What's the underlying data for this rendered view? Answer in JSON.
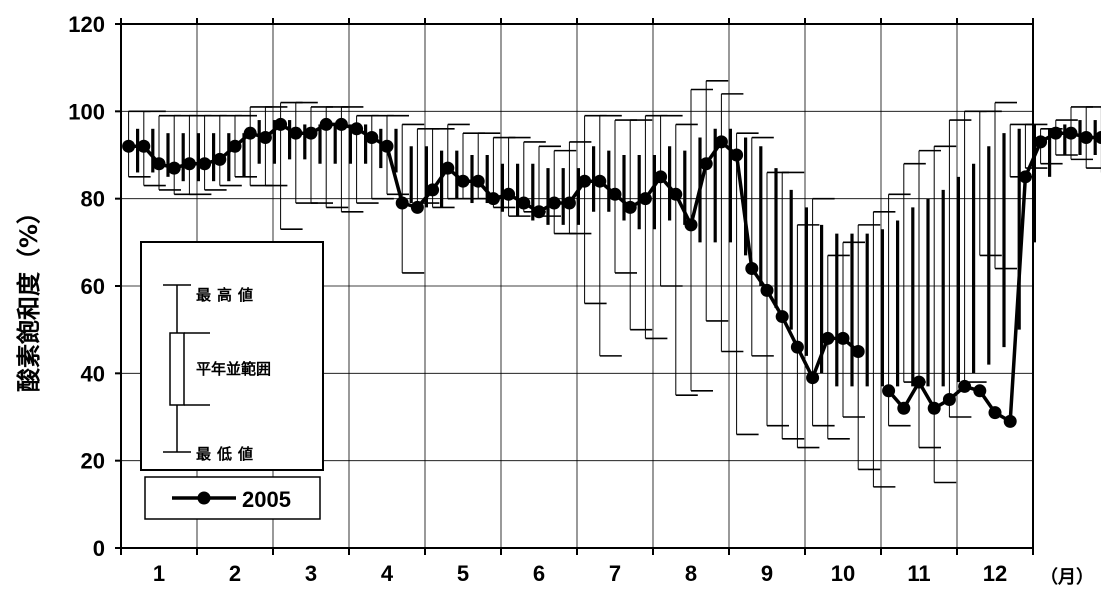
{
  "chart_data": {
    "type": "line",
    "ylabel": "酸素飽和度（%）",
    "xunit": "（月）",
    "ylim": [
      0,
      120
    ],
    "yticks": [
      "0",
      "20",
      "40",
      "60",
      "80",
      "100",
      "120"
    ],
    "months": [
      "1",
      "2",
      "3",
      "4",
      "5",
      "6",
      "7",
      "8",
      "9",
      "10",
      "11",
      "12"
    ],
    "grid": true,
    "legend": {
      "position": "bottom-left",
      "box_labels": {
        "max": "最高値",
        "range": "平年並範囲",
        "min": "最低値"
      },
      "series_label": "2005"
    },
    "series": [
      {
        "name": "2005",
        "x": [
          0.1,
          0.3,
          0.5,
          0.7,
          0.9,
          1.1,
          1.3,
          1.5,
          1.7,
          1.9,
          2.1,
          2.3,
          2.5,
          2.7,
          2.9,
          3.1,
          3.3,
          3.5,
          3.7,
          3.9,
          4.1,
          4.3,
          4.5,
          4.7,
          4.9,
          5.1,
          5.3,
          5.5,
          5.7,
          5.9,
          6.1,
          6.3,
          6.5,
          6.7,
          6.9,
          7.1,
          7.3,
          7.5,
          7.7,
          7.9,
          8.1,
          8.3,
          8.5,
          8.7,
          8.9,
          9.1,
          9.3,
          9.5,
          9.7,
          9.9,
          10.1,
          10.3,
          10.5,
          10.7,
          10.9,
          11.1,
          11.3,
          11.5,
          11.7,
          11.9,
          12.1,
          12.3,
          12.5,
          12.7,
          12.9
        ],
        "values": [
          92,
          92,
          88,
          87,
          88,
          88,
          89,
          92,
          95,
          94,
          97,
          95,
          95,
          97,
          97,
          96,
          94,
          92,
          79,
          78,
          82,
          87,
          84,
          84,
          80,
          81,
          79,
          77,
          79,
          79,
          84,
          84,
          81,
          78,
          80,
          85,
          81,
          74,
          88,
          93,
          90,
          64,
          59,
          53,
          46,
          39,
          48,
          48,
          45,
          null,
          36,
          32,
          38,
          32,
          34,
          37,
          36,
          31,
          29,
          85,
          93,
          95,
          95,
          94,
          94
        ]
      }
    ],
    "normal_range": {
      "x": [
        0.1,
        0.3,
        0.5,
        0.7,
        0.9,
        1.1,
        1.3,
        1.5,
        1.7,
        1.9,
        2.1,
        2.3,
        2.5,
        2.7,
        2.9,
        3.1,
        3.3,
        3.5,
        3.7,
        3.9,
        4.1,
        4.3,
        4.5,
        4.7,
        4.9,
        5.1,
        5.3,
        5.5,
        5.7,
        5.9,
        6.1,
        6.3,
        6.5,
        6.7,
        6.9,
        7.1,
        7.3,
        7.5,
        7.7,
        7.9,
        8.1,
        8.3,
        8.5,
        8.7,
        8.9,
        9.1,
        9.3,
        9.5,
        9.7,
        9.9,
        10.1,
        10.3,
        10.5,
        10.7,
        10.9,
        11.1,
        11.3,
        11.5,
        11.7,
        11.9,
        12.1,
        12.3,
        12.5,
        12.7,
        12.9
      ],
      "max": [
        100,
        100,
        99,
        99,
        99,
        99,
        99,
        99,
        101,
        101,
        102,
        102,
        101,
        101,
        101,
        99,
        99,
        99,
        97,
        96,
        96,
        97,
        95,
        95,
        94,
        94,
        93,
        92,
        91,
        93,
        99,
        99,
        98,
        98,
        99,
        99,
        97,
        105,
        107,
        104,
        95,
        94,
        86,
        86,
        74,
        80,
        67,
        70,
        74,
        77,
        81,
        88,
        91,
        92,
        98,
        100,
        100,
        102,
        97,
        97,
        96,
        98,
        101,
        101,
        101
      ],
      "upper": [
        96,
        96,
        95,
        95,
        95,
        95,
        95,
        95,
        98,
        98,
        98,
        97,
        97,
        97,
        97,
        97,
        96,
        96,
        92,
        92,
        91,
        91,
        90,
        90,
        88,
        88,
        88,
        87,
        87,
        87,
        92,
        91,
        90,
        90,
        90,
        92,
        91,
        94,
        96,
        96,
        94,
        92,
        87,
        82,
        78,
        74,
        72,
        72,
        72,
        73,
        75,
        78,
        80,
        82,
        85,
        88,
        92,
        95,
        96,
        97,
        96,
        97,
        98,
        98,
        98
      ],
      "lower": [
        86,
        86,
        85,
        84,
        84,
        84,
        84,
        85,
        88,
        88,
        89,
        89,
        88,
        88,
        88,
        88,
        87,
        86,
        79,
        78,
        78,
        80,
        79,
        79,
        77,
        76,
        75,
        74,
        74,
        74,
        77,
        77,
        75,
        73,
        73,
        75,
        74,
        70,
        70,
        70,
        67,
        60,
        55,
        50,
        44,
        40,
        37,
        37,
        37,
        37,
        37,
        37,
        37,
        37,
        38,
        40,
        42,
        46,
        50,
        70,
        85,
        90,
        90,
        90,
        90
      ],
      "min": [
        85,
        83,
        82,
        81,
        81,
        82,
        83,
        85,
        83,
        83,
        73,
        79,
        79,
        78,
        77,
        79,
        80,
        81,
        63,
        79,
        78,
        80,
        80,
        80,
        78,
        76,
        77,
        76,
        72,
        72,
        56,
        44,
        63,
        50,
        48,
        60,
        35,
        36,
        52,
        45,
        26,
        44,
        28,
        25,
        23,
        28,
        25,
        30,
        18,
        14,
        28,
        38,
        23,
        15,
        30,
        38,
        67,
        64,
        85,
        87,
        88,
        90,
        89,
        87,
        86
      ]
    }
  }
}
